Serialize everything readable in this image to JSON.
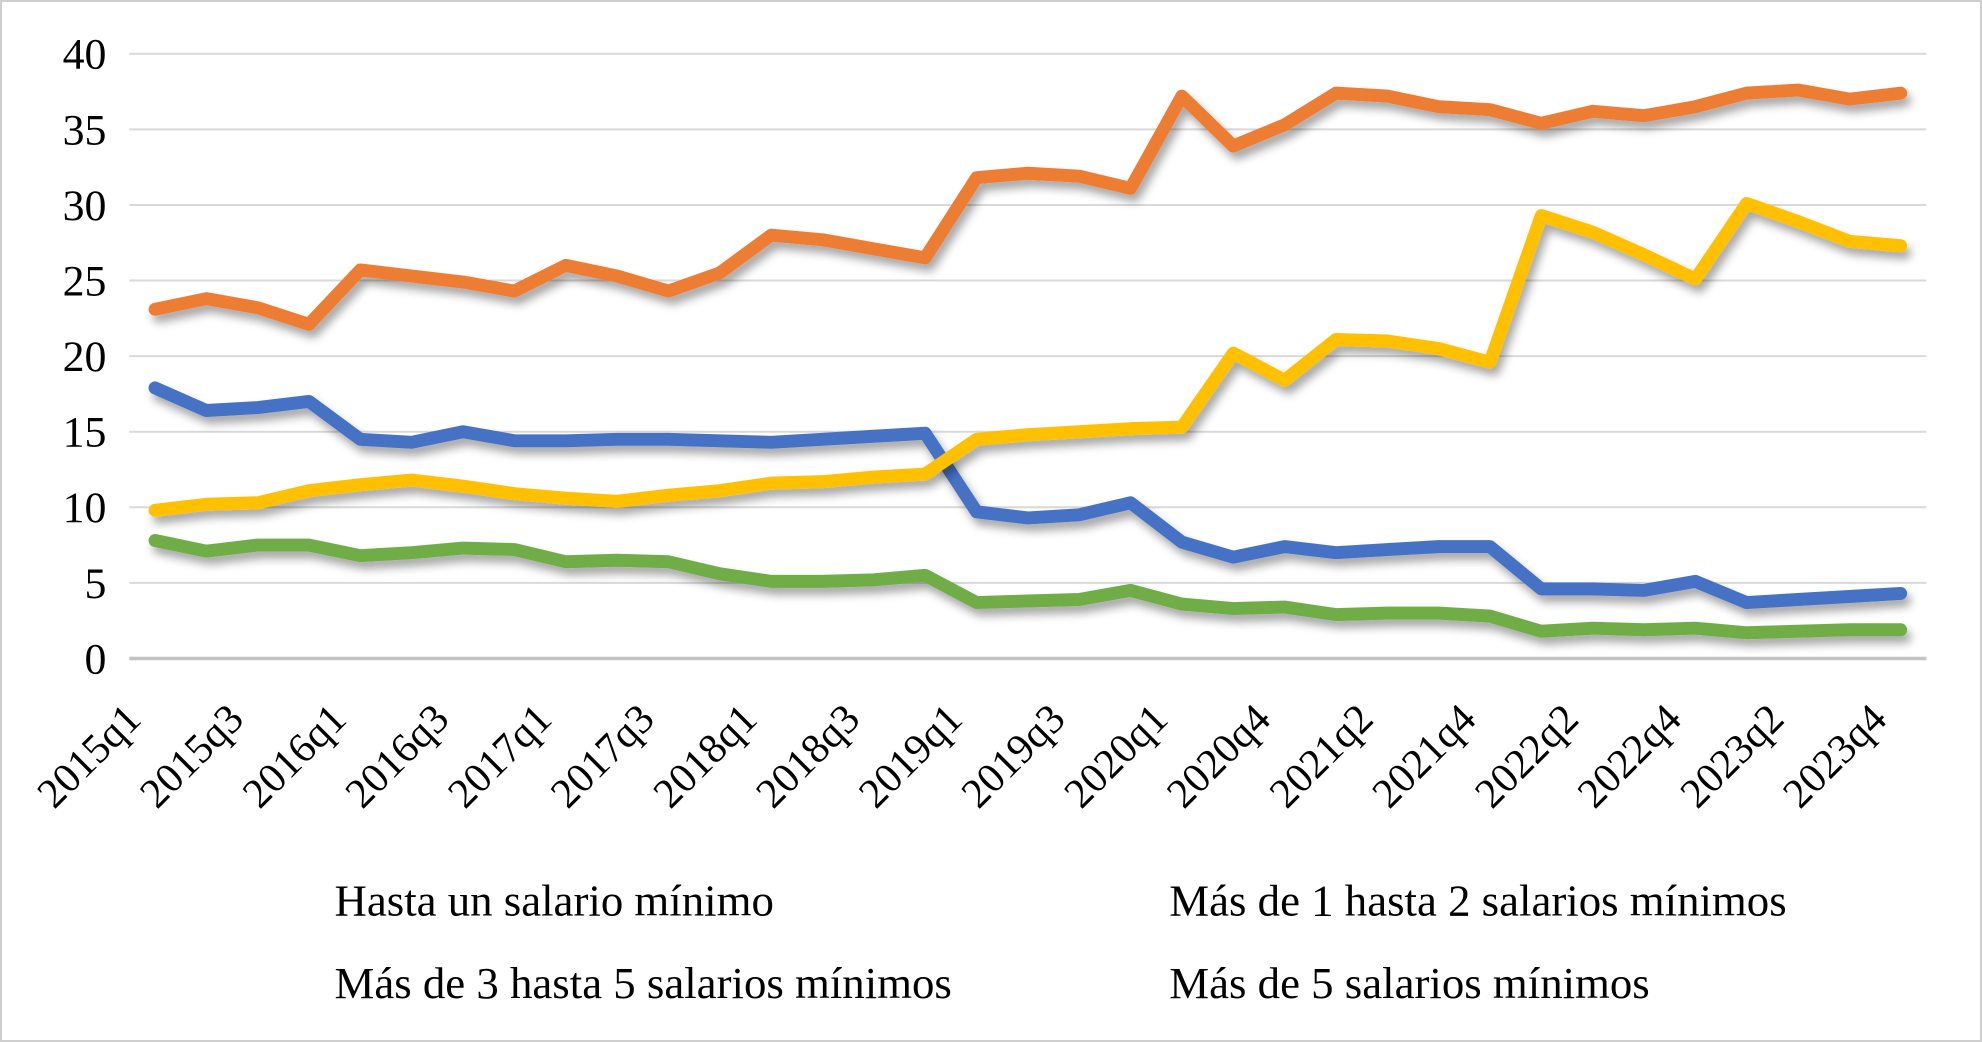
{
  "figure": {
    "background": "#ffffff",
    "border_color": "#cfcfcf",
    "text_color": "#000000",
    "gridline_color": "#d9d9d9",
    "axis_line_color": "#c3c3c3"
  },
  "chart_data": {
    "type": "line",
    "title": "",
    "xlabel": "",
    "ylabel": "",
    "ylim": [
      0,
      40
    ],
    "y_step": 5,
    "grid": true,
    "legend_position": "bottom",
    "y_tick_labels": [
      "0",
      "5",
      "10",
      "15",
      "20",
      "25",
      "30",
      "35",
      "40"
    ],
    "categories": [
      "2015q1",
      "2015q2",
      "2015q3",
      "2015q4",
      "2016q1",
      "2016q2",
      "2016q3",
      "2016q4",
      "2017q1",
      "2017q2",
      "2017q3",
      "2017q4",
      "2018q1",
      "2018q2",
      "2018q3",
      "2018q4",
      "2019q1",
      "2019q2",
      "2019q3",
      "2019q4",
      "2020q1",
      "2020q3",
      "2020q4",
      "2021q1",
      "2021q2",
      "2021q3",
      "2021q4",
      "2022q1",
      "2022q2",
      "2022q3",
      "2022q4",
      "2023q1",
      "2023q2",
      "2023q3",
      "2023q4"
    ],
    "x_tick_labels": [
      "2015q1",
      "2015q3",
      "2016q1",
      "2016q3",
      "2017q1",
      "2017q3",
      "2018q1",
      "2018q3",
      "2019q1",
      "2019q3",
      "2020q1",
      "2020q4",
      "2021q2",
      "2021q4",
      "2022q2",
      "2022q4",
      "2023q2",
      "2023q4"
    ],
    "series": [
      {
        "name": "Hasta un salario mínimo",
        "color": "#FFC000",
        "values": [
          9.8,
          10.2,
          10.3,
          11.1,
          11.5,
          11.8,
          11.4,
          10.9,
          10.6,
          10.4,
          10.8,
          11.1,
          11.6,
          11.7,
          12.0,
          12.2,
          14.5,
          14.8,
          15.0,
          15.2,
          15.3,
          20.2,
          18.4,
          21.1,
          21.0,
          20.5,
          19.6,
          29.3,
          28.2,
          26.7,
          25.1,
          30.1,
          28.9,
          27.6,
          27.3
        ]
      },
      {
        "name": "Más de 1 hasta 2 salarios mínimos",
        "color": "#ED7D31",
        "values": [
          23.1,
          23.8,
          23.2,
          22.1,
          25.7,
          25.3,
          24.9,
          24.3,
          26.0,
          25.3,
          24.3,
          25.5,
          28.0,
          27.7,
          27.1,
          26.5,
          31.8,
          32.1,
          31.9,
          31.1,
          37.2,
          33.9,
          35.3,
          37.4,
          37.2,
          36.5,
          36.3,
          35.4,
          36.2,
          35.9,
          36.5,
          37.4,
          37.6,
          37.0,
          37.4
        ]
      },
      {
        "name": "Más de 3 hasta 5 salarios mínimos",
        "color": "#4472C4",
        "values": [
          17.9,
          16.4,
          16.6,
          17.0,
          14.5,
          14.3,
          15.0,
          14.4,
          14.4,
          14.5,
          14.5,
          14.4,
          14.3,
          14.5,
          14.7,
          14.9,
          9.7,
          9.3,
          9.5,
          10.3,
          7.7,
          6.7,
          7.4,
          7.0,
          7.2,
          7.4,
          7.4,
          4.6,
          4.6,
          4.5,
          5.1,
          3.7,
          3.9,
          4.1,
          4.3
        ]
      },
      {
        "name": "Más de 5 salarios mínimos",
        "color": "#70AD47",
        "values": [
          7.8,
          7.1,
          7.5,
          7.5,
          6.8,
          7.0,
          7.3,
          7.2,
          6.4,
          6.5,
          6.4,
          5.6,
          5.1,
          5.1,
          5.2,
          5.5,
          3.7,
          3.8,
          3.9,
          4.5,
          3.6,
          3.3,
          3.4,
          2.9,
          3.0,
          3.0,
          2.8,
          1.8,
          2.0,
          1.9,
          2.0,
          1.7,
          1.8,
          1.9,
          1.9
        ]
      }
    ]
  }
}
